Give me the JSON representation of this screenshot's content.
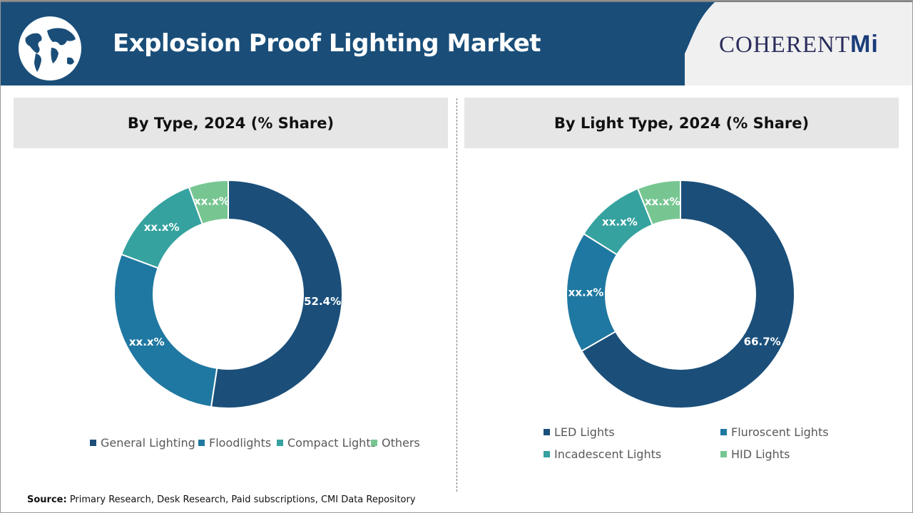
{
  "header": {
    "title": "Explosion Proof Lighting Market",
    "brand": "COHERENT",
    "brand_suffix": "Mi",
    "globe_icon": "world-map-globe"
  },
  "colors": {
    "header_bg": "#1a4e79",
    "series": [
      "#1b4f7a",
      "#1f78a1",
      "#35a29f",
      "#77c692"
    ]
  },
  "chart_data": [
    {
      "type": "pie",
      "donut": true,
      "title": "By Type, 2024 (% Share)",
      "categories": [
        "General Lighting",
        "Floodlights",
        "Compact Lights",
        "Others"
      ],
      "values": [
        52.4,
        28.3,
        13.7,
        5.6
      ],
      "data_labels": [
        "52.4%",
        "xx.x%",
        "xx.x%",
        "xx.x%"
      ],
      "legend_position": "bottom"
    },
    {
      "type": "pie",
      "donut": true,
      "title": "By Light Type, 2024 (% Share)",
      "categories": [
        "LED Lights",
        "Fluroscent Lights",
        "Incadescent Lights",
        "HID Lights"
      ],
      "values": [
        66.7,
        17.2,
        10.0,
        6.1
      ],
      "data_labels": [
        "66.7%",
        "xx.x%",
        "xx.x%",
        "xx.x%"
      ],
      "legend_position": "bottom"
    }
  ],
  "source": {
    "label": "Source:",
    "text": " Primary Research, Desk Research, Paid subscriptions, CMI Data Repository"
  }
}
